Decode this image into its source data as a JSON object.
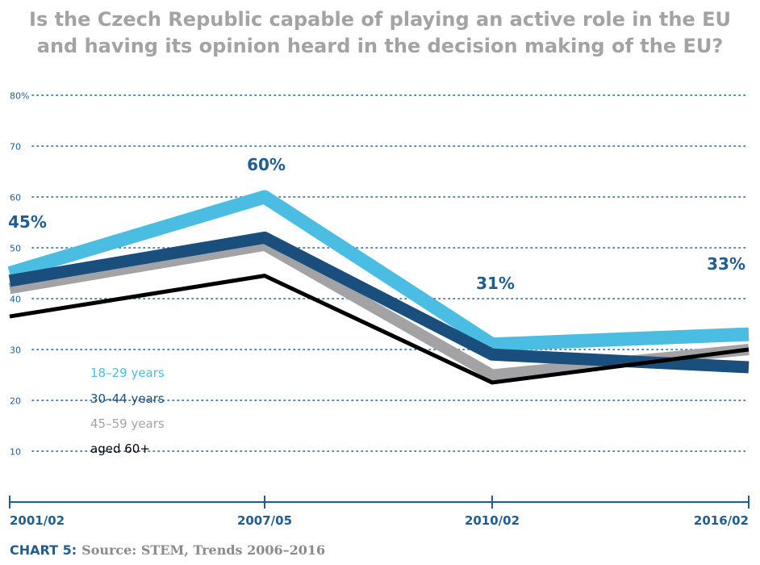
{
  "title_lines": [
    "Is the Czech Republic capable of playing an active role in the EU",
    "and having its opinion heard in the decision making of the EU?"
  ],
  "caption": {
    "label": "CHART 5:",
    "source": "Source: STEM, Trends 2006–2016"
  },
  "chart_data": {
    "type": "line",
    "title": "Is the Czech Republic capable of playing an active role in the EU and having its opinion heard in the decision making of the EU?",
    "categories": [
      "2001/02",
      "2007/05",
      "2010/02",
      "2016/02"
    ],
    "ylim": [
      0,
      80
    ],
    "yticks": [
      10,
      20,
      30,
      40,
      50,
      60,
      70,
      80
    ],
    "ytick_labels": [
      "10",
      "20",
      "30",
      "40",
      "50",
      "60",
      "70",
      "80%"
    ],
    "grid": "horizontal dotted",
    "series": [
      {
        "name": "45–59 years",
        "values": [
          42,
          50.5,
          25,
          30
        ],
        "color": "#a3a3a5"
      },
      {
        "name": "18–29 years",
        "values": [
          45,
          60,
          31,
          33
        ],
        "color": "#4bbde2"
      },
      {
        "name": "30–44 years",
        "values": [
          43.5,
          52,
          29,
          26.5
        ],
        "color": "#1a4f7d"
      },
      {
        "name": "aged 60+",
        "values": [
          36.5,
          44.5,
          23.5,
          30
        ],
        "color": "#000000"
      }
    ],
    "annotations": [
      {
        "text": "45%",
        "category": "2001/02",
        "value": 45
      },
      {
        "text": "60%",
        "category": "2007/05",
        "value": 60
      },
      {
        "text": "31%",
        "category": "2010/02",
        "value": 31
      },
      {
        "text": "33%",
        "category": "2016/02",
        "value": 33
      }
    ],
    "legend": {
      "placement": "bottom-left",
      "items": [
        {
          "text": "18–29 years",
          "color": "#4bbde2"
        },
        {
          "text": "30–44 years",
          "color": "#1a4f7d"
        },
        {
          "text": "45–59 years",
          "color": "#a3a3a5"
        },
        {
          "text": "aged 60+",
          "color": "#000000"
        }
      ]
    },
    "colors": {
      "axis": "#1f5d93",
      "grid": "#1f5d93",
      "annotation": "#1f5d93"
    }
  }
}
